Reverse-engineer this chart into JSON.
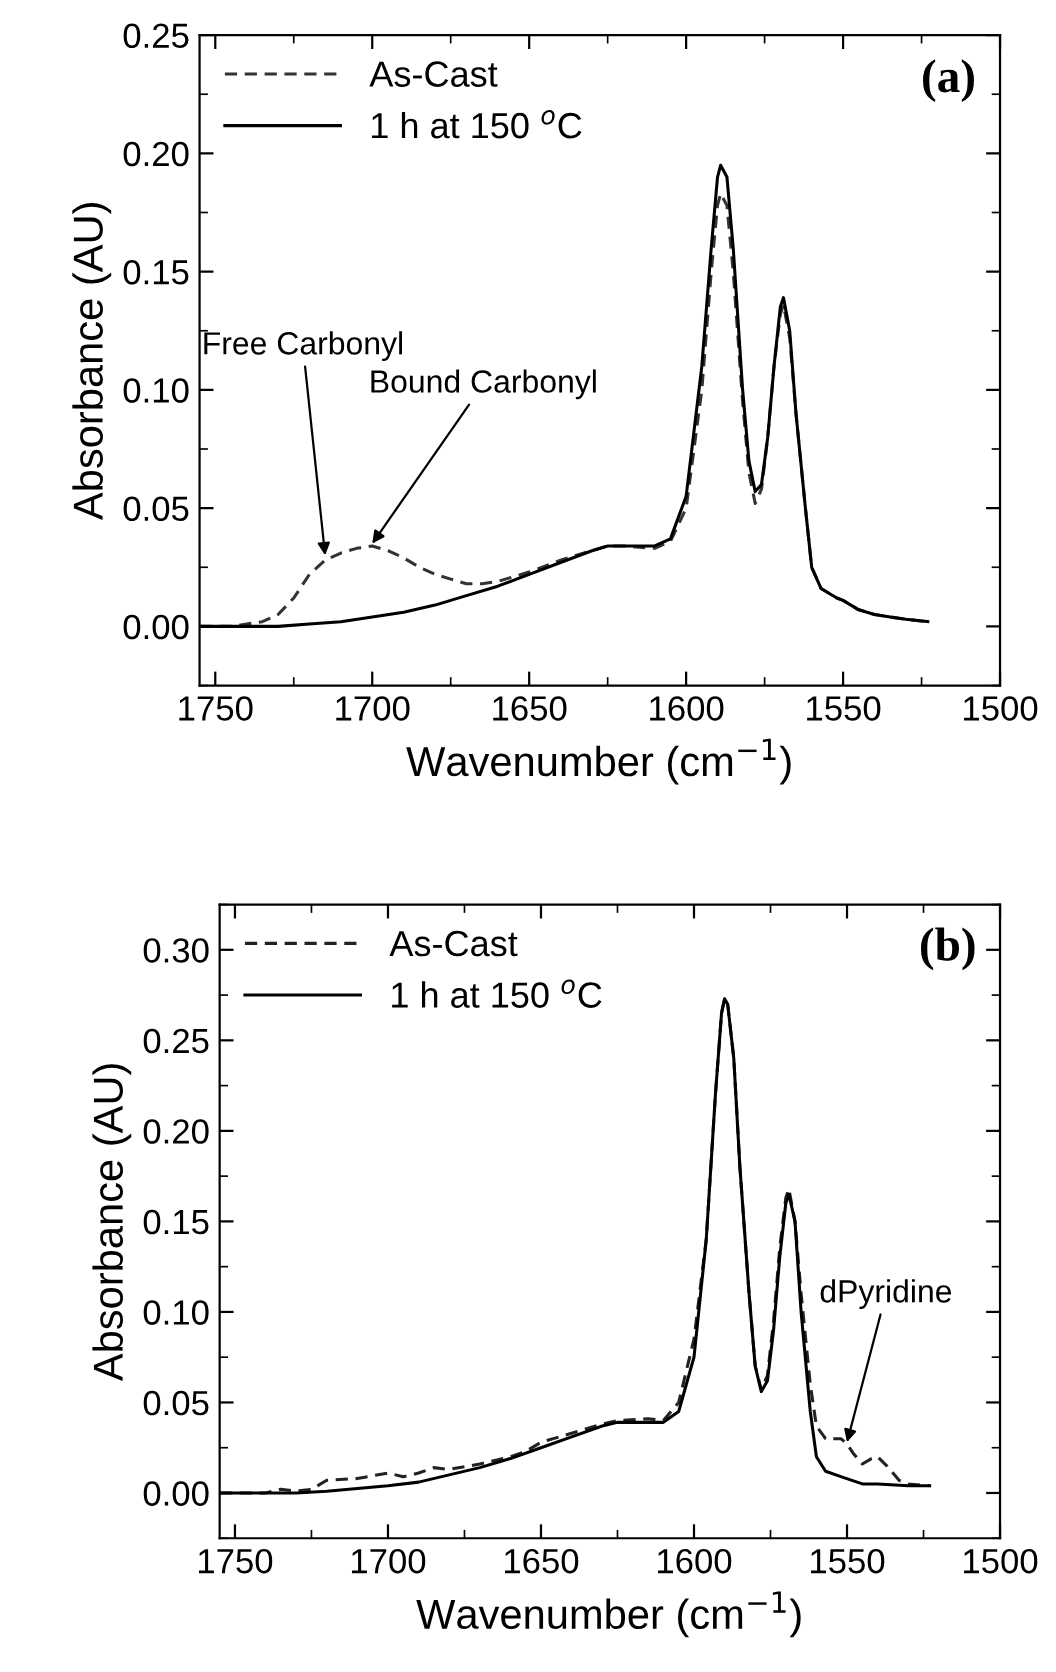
{
  "chart_data": [
    {
      "type": "line",
      "title": "(a)",
      "xlabel": "Wavenumber (cm$^{−1}$)",
      "ylabel": "Absorbance (AU)",
      "xlim": [
        1755,
        1500
      ],
      "ylim": [
        -0.025,
        0.25
      ],
      "xticks": [
        1750,
        1700,
        1650,
        1600,
        1550,
        1500
      ],
      "yticks": [
        {
          "value": 0,
          "label": "0.00"
        },
        {
          "value": 0.05,
          "label": "0.05"
        },
        {
          "value": 0.1,
          "label": "0.10"
        },
        {
          "value": 0.15,
          "label": "0.15"
        },
        {
          "value": 0.2,
          "label": "0.20"
        },
        {
          "value": 0.25,
          "label": "0.25"
        }
      ],
      "legend": "top left",
      "grid": false,
      "series": [
        {
          "name": "As-Cast",
          "color": "#333333",
          "line_style": "dashed",
          "x": [
            1755,
            1745,
            1740,
            1735,
            1730,
            1725,
            1720,
            1715,
            1710,
            1705,
            1700,
            1695,
            1690,
            1685,
            1680,
            1675,
            1670,
            1665,
            1660,
            1655,
            1650,
            1640,
            1630,
            1625,
            1620,
            1610,
            1605,
            1600,
            1595,
            1592,
            1590,
            1589,
            1587,
            1585,
            1582,
            1580,
            1578,
            1576,
            1574,
            1572,
            1570,
            1569,
            1567,
            1565,
            1562,
            1560,
            1557,
            1552,
            1550,
            1545,
            1540,
            1535,
            1530,
            1523
          ],
          "values": [
            0,
            0,
            0.001,
            0.002,
            0.005,
            0.012,
            0.022,
            0.028,
            0.031,
            0.033,
            0.034,
            0.032,
            0.029,
            0.025,
            0.022,
            0.02,
            0.018,
            0.018,
            0.019,
            0.021,
            0.023,
            0.028,
            0.032,
            0.034,
            0.034,
            0.033,
            0.036,
            0.05,
            0.1,
            0.15,
            0.178,
            0.183,
            0.178,
            0.15,
            0.095,
            0.065,
            0.052,
            0.058,
            0.08,
            0.11,
            0.132,
            0.136,
            0.122,
            0.09,
            0.05,
            0.025,
            0.016,
            0.012,
            0.011,
            0.007,
            0.005,
            0.004,
            0.003,
            0.002
          ]
        },
        {
          "name": "1 h at 150 $^{o}$C",
          "color": "#000000",
          "line_style": "solid",
          "x": [
            1755,
            1740,
            1730,
            1720,
            1710,
            1700,
            1690,
            1680,
            1670,
            1660,
            1650,
            1640,
            1630,
            1625,
            1620,
            1610,
            1605,
            1600,
            1595,
            1592,
            1590,
            1589,
            1587,
            1585,
            1582,
            1580,
            1578,
            1576,
            1574,
            1572,
            1570,
            1569,
            1567,
            1565,
            1562,
            1560,
            1557,
            1552,
            1550,
            1545,
            1540,
            1535,
            1530,
            1523
          ],
          "values": [
            0,
            0,
            0,
            0.001,
            0.002,
            0.004,
            0.006,
            0.009,
            0.013,
            0.017,
            0.022,
            0.027,
            0.032,
            0.034,
            0.034,
            0.034,
            0.037,
            0.055,
            0.11,
            0.16,
            0.19,
            0.195,
            0.19,
            0.16,
            0.1,
            0.07,
            0.057,
            0.06,
            0.08,
            0.11,
            0.135,
            0.139,
            0.125,
            0.09,
            0.05,
            0.025,
            0.016,
            0.012,
            0.011,
            0.007,
            0.005,
            0.004,
            0.003,
            0.002
          ]
        }
      ],
      "annotations": [
        {
          "text": "Free Carbonyl",
          "x": 1715,
          "y": 0.03
        },
        {
          "text": "Bound Carbonyl",
          "x": 1700,
          "y": 0.035
        }
      ]
    },
    {
      "type": "line",
      "title": "(b)",
      "xlabel": "Wavenumber (cm$^{−1}$)",
      "ylabel": "Absorbance (AU)",
      "xlim": [
        1755,
        1500
      ],
      "ylim": [
        -0.025,
        0.325
      ],
      "xticks": [
        1750,
        1700,
        1650,
        1600,
        1550,
        1500
      ],
      "yticks": [
        {
          "value": 0,
          "label": "0.00"
        },
        {
          "value": 0.05,
          "label": "0.05"
        },
        {
          "value": 0.1,
          "label": "0.10"
        },
        {
          "value": 0.15,
          "label": "0.15"
        },
        {
          "value": 0.2,
          "label": "0.20"
        },
        {
          "value": 0.25,
          "label": "0.25"
        },
        {
          "value": 0.3,
          "label": "0.30"
        }
      ],
      "legend": "top left",
      "grid": false,
      "series": [
        {
          "name": "As-Cast",
          "color": "#222222",
          "line_style": "dashed",
          "x": [
            1755,
            1740,
            1735,
            1730,
            1725,
            1720,
            1710,
            1700,
            1695,
            1690,
            1685,
            1680,
            1670,
            1660,
            1655,
            1650,
            1640,
            1630,
            1625,
            1615,
            1610,
            1605,
            1600,
            1596,
            1593,
            1591,
            1590,
            1589,
            1587,
            1585,
            1582,
            1580,
            1578,
            1576,
            1574,
            1572,
            1570,
            1569,
            1567,
            1565,
            1562,
            1560,
            1557,
            1552,
            1550,
            1548,
            1545,
            1542,
            1540,
            1537,
            1533,
            1530,
            1523
          ],
          "values": [
            0,
            0,
            0.002,
            0.001,
            0.002,
            0.007,
            0.008,
            0.011,
            0.009,
            0.011,
            0.014,
            0.013,
            0.016,
            0.02,
            0.023,
            0.028,
            0.033,
            0.038,
            0.04,
            0.041,
            0.04,
            0.05,
            0.085,
            0.14,
            0.22,
            0.265,
            0.273,
            0.27,
            0.24,
            0.18,
            0.11,
            0.07,
            0.057,
            0.065,
            0.095,
            0.135,
            0.163,
            0.168,
            0.15,
            0.11,
            0.06,
            0.037,
            0.03,
            0.03,
            0.027,
            0.022,
            0.016,
            0.019,
            0.02,
            0.015,
            0.007,
            0.005,
            0.004
          ]
        },
        {
          "name": "1 h at 150 $^{o}$C",
          "color": "#000000",
          "line_style": "solid",
          "x": [
            1755,
            1740,
            1730,
            1720,
            1700,
            1690,
            1680,
            1670,
            1660,
            1650,
            1640,
            1630,
            1625,
            1620,
            1610,
            1605,
            1600,
            1596,
            1593,
            1591,
            1590,
            1589,
            1587,
            1585,
            1582,
            1580,
            1578,
            1576,
            1574,
            1572,
            1570,
            1569,
            1567,
            1565,
            1562,
            1560,
            1557,
            1552,
            1545,
            1540,
            1530,
            1523
          ],
          "values": [
            0,
            0,
            0,
            0.001,
            0.004,
            0.006,
            0.01,
            0.014,
            0.019,
            0.025,
            0.031,
            0.037,
            0.039,
            0.039,
            0.039,
            0.045,
            0.075,
            0.14,
            0.22,
            0.265,
            0.273,
            0.27,
            0.24,
            0.18,
            0.11,
            0.07,
            0.056,
            0.062,
            0.09,
            0.13,
            0.16,
            0.165,
            0.15,
            0.1,
            0.045,
            0.02,
            0.012,
            0.009,
            0.005,
            0.005,
            0.004,
            0.004
          ]
        }
      ],
      "annotations": [
        {
          "text": "dPyridine",
          "x": 1550,
          "y": 0.028
        }
      ]
    }
  ]
}
